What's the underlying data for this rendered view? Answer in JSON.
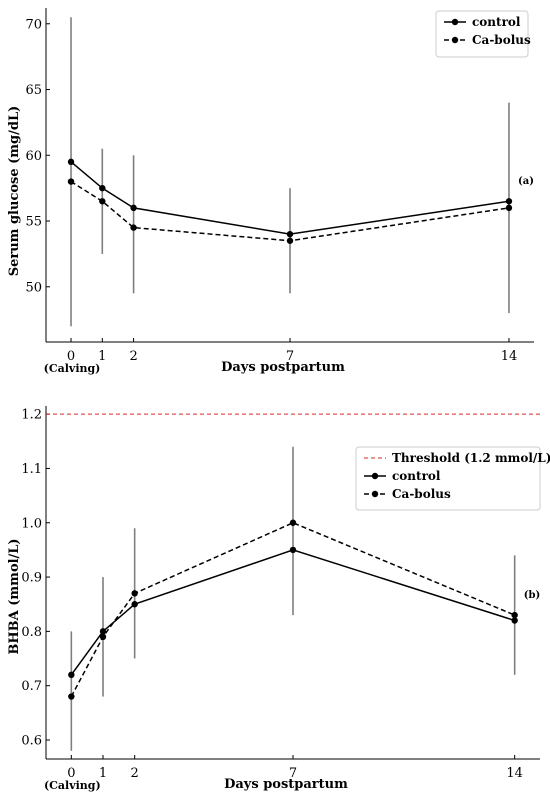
{
  "chart_data": [
    {
      "type": "line",
      "panel_label": "(a)",
      "xlabel": "Days postpartum",
      "ylabel": "Serum glucose (mg/dL)",
      "x": [
        0,
        1,
        2,
        7,
        14
      ],
      "x_ticks": [
        0,
        1,
        2,
        7,
        14
      ],
      "x_tick_labels": [
        "0",
        "1",
        "2",
        "7",
        "14"
      ],
      "x_sub_label": "(Calving)",
      "xlim": [
        -0.8,
        14.8
      ],
      "ylim": [
        45.8,
        71.2
      ],
      "y_ticks": [
        50,
        55,
        60,
        65,
        70
      ],
      "y_tick_labels": [
        "50",
        "55",
        "60",
        "65",
        "70"
      ],
      "grid": false,
      "legend": "top-right",
      "series": [
        {
          "name": "control",
          "style": "solid",
          "color": "#000000",
          "values": [
            59.5,
            57.5,
            56.0,
            54.0,
            56.5
          ],
          "err_low": [
            47.0,
            52.5,
            49.5,
            49.5,
            48.0
          ],
          "err_high": [
            70.5,
            60.5,
            60.0,
            57.5,
            64.0
          ]
        },
        {
          "name": "Ca-bolus",
          "style": "dashed",
          "color": "#000000",
          "values": [
            58.0,
            56.5,
            54.5,
            53.5,
            56.0
          ]
        }
      ],
      "threshold": null
    },
    {
      "type": "line",
      "panel_label": "(b)",
      "xlabel": "Days postpartum",
      "ylabel": "BHBA (mmol/L)",
      "x": [
        0,
        1,
        2,
        7,
        14
      ],
      "x_ticks": [
        0,
        1,
        2,
        7,
        14
      ],
      "x_tick_labels": [
        "0",
        "1",
        "2",
        "7",
        "14"
      ],
      "x_sub_label": "(Calving)",
      "xlim": [
        -0.8,
        14.8
      ],
      "ylim": [
        0.565,
        1.215
      ],
      "y_ticks": [
        0.6,
        0.7,
        0.8,
        0.9,
        1.0,
        1.1,
        1.2
      ],
      "y_tick_labels": [
        "0.6",
        "0.7",
        "0.8",
        "0.9",
        "1.0",
        "1.1",
        "1.2"
      ],
      "grid": false,
      "legend": "top-right",
      "series": [
        {
          "name": "control",
          "style": "solid",
          "color": "#000000",
          "values": [
            0.72,
            0.8,
            0.85,
            0.95,
            0.82
          ],
          "err_low": [
            0.58,
            0.68,
            0.75,
            0.83,
            0.72
          ],
          "err_high": [
            0.8,
            0.9,
            0.99,
            1.14,
            0.94
          ]
        },
        {
          "name": "Ca-bolus",
          "style": "dashed",
          "color": "#000000",
          "values": [
            0.68,
            0.79,
            0.87,
            1.0,
            0.83
          ]
        }
      ],
      "threshold": {
        "name": "Threshold (1.2 mmol/L)",
        "value": 1.2,
        "color": "#d62728"
      }
    }
  ]
}
